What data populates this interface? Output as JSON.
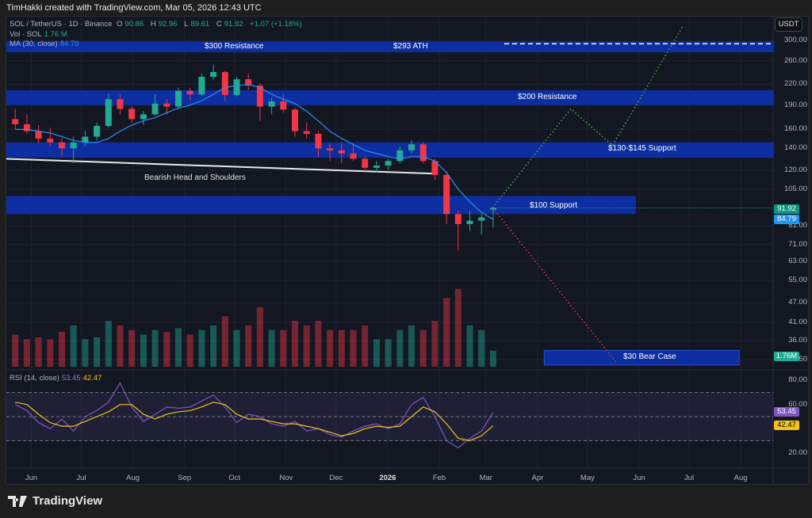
{
  "header": {
    "attribution": "TimHakki created with TradingView.com, Mar 05, 2026 12:43 UTC"
  },
  "legend": {
    "symbol": "SOL / TetherUS · 1D · Binance",
    "o_label": "O",
    "o": "90.86",
    "h_label": "H",
    "h": "92.96",
    "l_label": "L",
    "l": "89.61",
    "c_label": "C",
    "c": "91.92",
    "change": "+1.07 (+1.18%)",
    "vol_label": "Vol · SOL",
    "vol": "1.76 M",
    "ma_label": "MA (30, close)",
    "ma": "84.79",
    "rsi_label": "RSI (14, close)",
    "rsi": "53.45",
    "rsi_ma": "42.47"
  },
  "currency": "USDT",
  "price_tags": {
    "last": "91.92",
    "ma": "84.79",
    "volume": "1.76M",
    "rsi": "53.45",
    "rsi_ma": "42.47"
  },
  "colors": {
    "up": "#22ab94",
    "down": "#f23645",
    "ma": "#2f8cff",
    "zone": "#0d2ea0",
    "rsi": "#7e57c2",
    "rsi_ma": "#f0c419",
    "bull_path": "#4caf50",
    "bear_path": "#f23645"
  },
  "logo": {
    "text": "TradingView"
  },
  "chart_data": {
    "type": "candlestick",
    "scale": "log",
    "interval_shown": "weekly approximation of daily candles",
    "price_ticks": [
      "300.00",
      "260.00",
      "220.00",
      "190.00",
      "160.00",
      "140.00",
      "120.00",
      "105.00",
      "81.00",
      "71.00",
      "63.00",
      "55.00",
      "47.00",
      "41.00",
      "36.00",
      "31.50"
    ],
    "time_ticks": [
      {
        "label": "Jun",
        "date": "2025-06-01"
      },
      {
        "label": "Jul",
        "date": "2025-07-01"
      },
      {
        "label": "Aug",
        "date": "2025-08-01"
      },
      {
        "label": "Sep",
        "date": "2025-09-01"
      },
      {
        "label": "Oct",
        "date": "2025-10-01"
      },
      {
        "label": "Nov",
        "date": "2025-11-01"
      },
      {
        "label": "Dec",
        "date": "2025-12-01"
      },
      {
        "label": "2026",
        "date": "2026-01-01"
      },
      {
        "label": "Feb",
        "date": "2026-02-01"
      },
      {
        "label": "Mar",
        "date": "2026-03-01"
      },
      {
        "label": "Apr",
        "date": "2026-04-01"
      },
      {
        "label": "May",
        "date": "2026-05-01"
      },
      {
        "label": "Jun",
        "date": "2026-06-01"
      },
      {
        "label": "Jul",
        "date": "2026-07-01"
      },
      {
        "label": "Aug",
        "date": "2026-08-01"
      }
    ],
    "ohlc": [
      [
        "2025-05-19",
        172,
        185,
        160,
        166
      ],
      [
        "2025-05-26",
        166,
        178,
        155,
        158
      ],
      [
        "2025-06-02",
        158,
        165,
        145,
        150
      ],
      [
        "2025-06-09",
        150,
        162,
        142,
        146
      ],
      [
        "2025-06-16",
        146,
        150,
        132,
        140
      ],
      [
        "2025-06-23",
        140,
        152,
        126,
        146
      ],
      [
        "2025-06-30",
        146,
        158,
        142,
        152
      ],
      [
        "2025-07-07",
        152,
        168,
        148,
        164
      ],
      [
        "2025-07-14",
        164,
        206,
        162,
        198
      ],
      [
        "2025-07-21",
        198,
        205,
        178,
        185
      ],
      [
        "2025-07-28",
        185,
        188,
        168,
        172
      ],
      [
        "2025-08-04",
        172,
        182,
        165,
        178
      ],
      [
        "2025-08-11",
        178,
        205,
        176,
        192
      ],
      [
        "2025-08-18",
        192,
        198,
        178,
        188
      ],
      [
        "2025-08-25",
        188,
        215,
        185,
        210
      ],
      [
        "2025-09-01",
        210,
        214,
        196,
        205
      ],
      [
        "2025-09-08",
        205,
        238,
        202,
        232
      ],
      [
        "2025-09-15",
        232,
        253,
        228,
        240
      ],
      [
        "2025-09-22",
        240,
        242,
        195,
        204
      ],
      [
        "2025-09-29",
        204,
        232,
        202,
        228
      ],
      [
        "2025-10-06",
        228,
        238,
        212,
        218
      ],
      [
        "2025-10-13",
        218,
        222,
        170,
        188
      ],
      [
        "2025-10-20",
        188,
        200,
        178,
        195
      ],
      [
        "2025-10-27",
        195,
        205,
        180,
        184
      ],
      [
        "2025-11-03",
        184,
        186,
        152,
        158
      ],
      [
        "2025-11-10",
        158,
        168,
        150,
        155
      ],
      [
        "2025-11-17",
        155,
        158,
        132,
        140
      ],
      [
        "2025-11-24",
        140,
        145,
        128,
        138
      ],
      [
        "2025-12-01",
        138,
        146,
        126,
        135
      ],
      [
        "2025-12-08",
        135,
        145,
        128,
        130
      ],
      [
        "2025-12-15",
        130,
        132,
        118,
        122
      ],
      [
        "2025-12-22",
        122,
        128,
        118,
        124
      ],
      [
        "2025-12-29",
        124,
        130,
        120,
        128
      ],
      [
        "2026-01-05",
        128,
        142,
        126,
        138
      ],
      [
        "2026-01-12",
        138,
        148,
        135,
        144
      ],
      [
        "2026-01-19",
        144,
        146,
        126,
        128
      ],
      [
        "2026-01-26",
        128,
        130,
        112,
        116
      ],
      [
        "2026-02-02",
        116,
        118,
        82,
        88
      ],
      [
        "2026-02-09",
        88,
        90,
        68,
        82
      ],
      [
        "2026-02-16",
        82,
        90,
        78,
        84
      ],
      [
        "2026-02-23",
        84,
        88,
        76,
        86
      ],
      [
        "2026-03-02",
        90.86,
        92.96,
        80,
        91.92
      ]
    ],
    "ma30": [
      160,
      160,
      158,
      156,
      152,
      148,
      146,
      146,
      150,
      158,
      165,
      170,
      174,
      180,
      186,
      190,
      196,
      205,
      215,
      218,
      220,
      215,
      205,
      198,
      192,
      182,
      170,
      158,
      150,
      144,
      138,
      135,
      132,
      130,
      132,
      132,
      128,
      118,
      105,
      96,
      89,
      84.79
    ],
    "volume_millions": [
      3.5,
      3,
      3.2,
      3,
      3.8,
      4.5,
      3,
      3.2,
      5,
      4.5,
      4,
      3.5,
      4,
      3.8,
      4.2,
      3.5,
      4,
      4.5,
      5.5,
      4,
      4.5,
      6.5,
      4,
      4,
      5,
      4.5,
      5,
      4,
      4,
      4,
      4.5,
      3,
      3,
      4,
      4.5,
      4,
      5,
      7.5,
      8.5,
      4.5,
      4,
      1.76
    ],
    "rsi": {
      "ticks": [
        "80.00",
        "60.00",
        "20.00"
      ],
      "bands": [
        70,
        50,
        30
      ],
      "values": [
        60,
        55,
        45,
        40,
        48,
        38,
        50,
        55,
        62,
        78,
        58,
        46,
        52,
        58,
        57,
        58,
        63,
        68,
        58,
        45,
        52,
        50,
        44,
        42,
        46,
        38,
        40,
        35,
        33,
        38,
        42,
        44,
        40,
        44,
        60,
        66,
        50,
        30,
        24,
        32,
        38,
        53.45
      ],
      "ma": [
        62,
        60,
        52,
        45,
        42,
        42,
        46,
        50,
        54,
        60,
        60,
        52,
        48,
        52,
        54,
        55,
        58,
        62,
        60,
        52,
        48,
        48,
        46,
        44,
        44,
        42,
        40,
        37,
        34,
        36,
        40,
        42,
        41,
        42,
        50,
        58,
        54,
        44,
        32,
        30,
        34,
        42.47
      ]
    },
    "zones": [
      {
        "label": "$300 Resistance",
        "top": 298,
        "bottom": 276,
        "end": "2026-08-21"
      },
      {
        "label": "$200 Resistance",
        "top": 211,
        "bottom": 190,
        "end": "2026-08-21"
      },
      {
        "label": "$130-$145 Support",
        "top": 146,
        "bottom": 131,
        "end": "2026-08-21"
      },
      {
        "label": "$100 Support",
        "top": 100,
        "bottom": 88,
        "end": "2026-05-30"
      },
      {
        "label": "$30 Bear Case",
        "top": 33.6,
        "bottom": 30.3,
        "start": "2026-04-05",
        "end": "2026-07-31"
      }
    ],
    "ath": {
      "label": "$293 ATH",
      "price": 293,
      "start": "2026-03-12"
    },
    "neckline": {
      "label": "Bearish Head and Shoulders",
      "points": [
        [
          "2025-05-17",
          130
        ],
        [
          "2026-01-31",
          117
        ]
      ]
    },
    "bull_path": [
      [
        "2026-03-05",
        92
      ],
      [
        "2026-04-21",
        185
      ],
      [
        "2026-05-16",
        143
      ],
      [
        "2026-06-27",
        330
      ]
    ],
    "bear_path": [
      [
        "2026-03-05",
        92
      ],
      [
        "2026-05-18",
        31
      ]
    ]
  }
}
